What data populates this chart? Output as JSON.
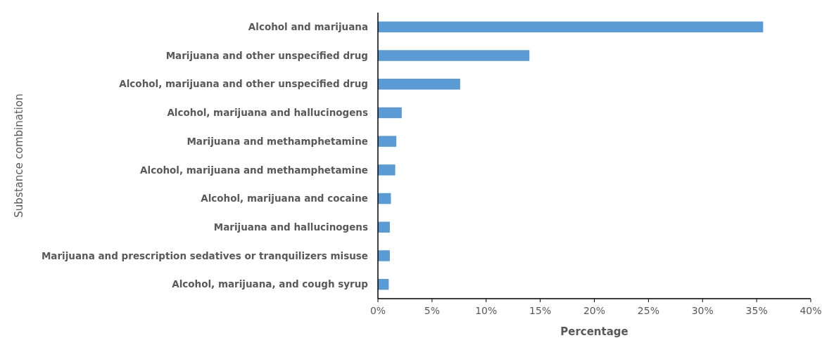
{
  "chart_data": {
    "type": "bar",
    "orientation": "horizontal",
    "xlabel": "Percentage",
    "ylabel": "Substance combination",
    "categories": [
      "Alcohol and marijuana",
      "Marijuana and other unspecified drug",
      "Alcohol, marijuana and other unspecified drug",
      "Alcohol, marijuana and hallucinogens",
      "Marijuana and methamphetamine",
      "Alcohol, marijuana and methamphetamine",
      "Alcohol, marijuana and cocaine",
      "Marijuana and hallucinogens",
      "Marijuana and prescription sedatives or tranquilizers misuse",
      "Alcohol, marijuana, and cough syrup"
    ],
    "values": [
      35.6,
      14.0,
      7.6,
      2.2,
      1.7,
      1.6,
      1.2,
      1.1,
      1.1,
      1.0
    ],
    "color": "#5b9bd5",
    "xlim": [
      0,
      40
    ],
    "xticks": [
      {
        "value": 0,
        "label": "0%"
      },
      {
        "value": 5,
        "label": "5%"
      },
      {
        "value": 10,
        "label": "10%"
      },
      {
        "value": 15,
        "label": "15%"
      },
      {
        "value": 20,
        "label": "20%"
      },
      {
        "value": 25,
        "label": "25%"
      },
      {
        "value": 30,
        "label": "30%"
      },
      {
        "value": 35,
        "label": "35%"
      },
      {
        "value": 40,
        "label": "40%"
      }
    ]
  }
}
